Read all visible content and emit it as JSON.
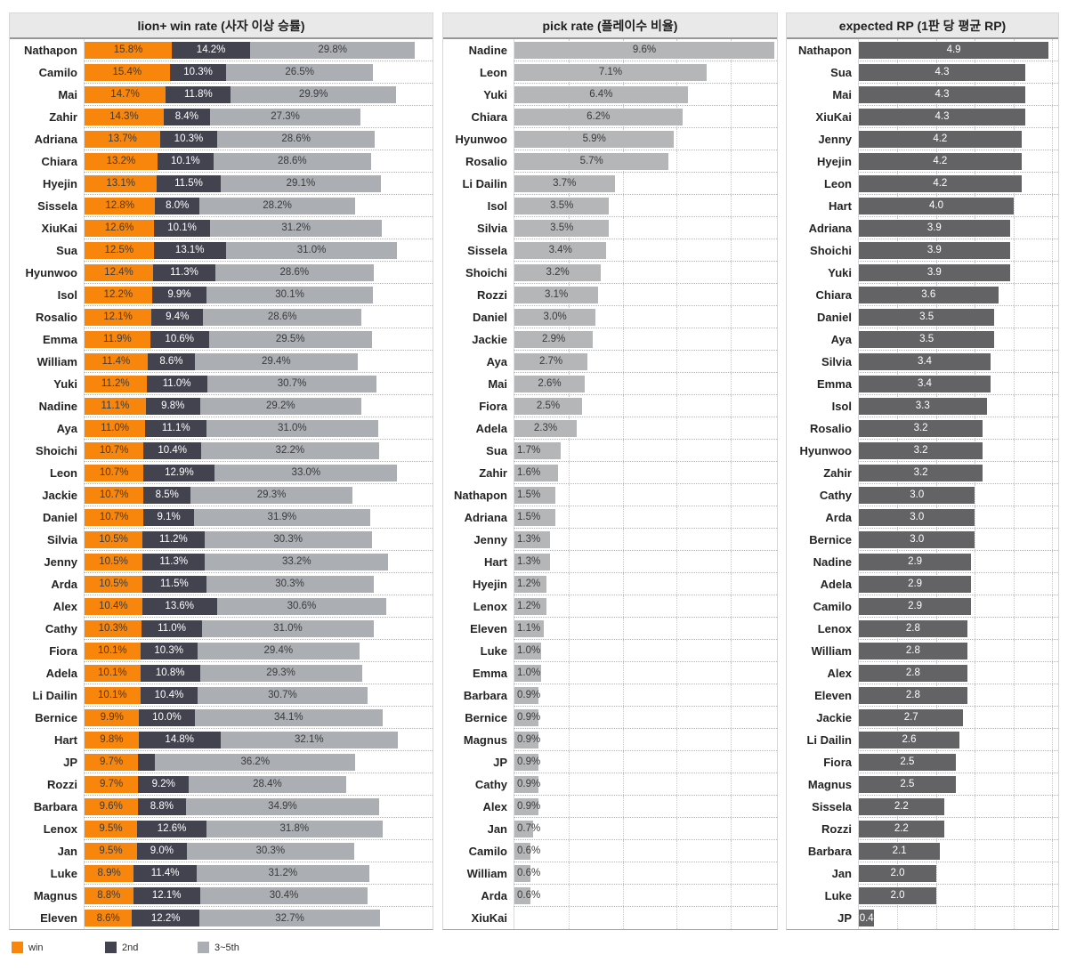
{
  "page": {
    "background": "#ffffff"
  },
  "legend": {
    "items": [
      {
        "label": "win",
        "color": "#F8860D"
      },
      {
        "label": "2nd",
        "color": "#42434F"
      },
      {
        "label": "3~5th",
        "color": "#ABAFB3"
      }
    ]
  },
  "chart_data": [
    {
      "type": "bar",
      "orientation": "horizontal",
      "stacked": true,
      "title": "lion+ win rate (사자 이상 승률)",
      "legend": [
        "win",
        "2nd",
        "3~5th"
      ],
      "colors": [
        "#F8860D",
        "#42434F",
        "#ABAFB3"
      ],
      "xlim": [
        0,
        63
      ],
      "value_format": "percent_1dp",
      "grid": "dotted-row-separators",
      "rows": [
        {
          "name": "Nathapon",
          "values": [
            15.8,
            14.2,
            29.8
          ]
        },
        {
          "name": "Camilo",
          "values": [
            15.4,
            10.3,
            26.5
          ]
        },
        {
          "name": "Mai",
          "values": [
            14.7,
            11.8,
            29.9
          ]
        },
        {
          "name": "Zahir",
          "values": [
            14.3,
            8.4,
            27.3
          ]
        },
        {
          "name": "Adriana",
          "values": [
            13.7,
            10.3,
            28.6
          ]
        },
        {
          "name": "Chiara",
          "values": [
            13.2,
            10.1,
            28.6
          ]
        },
        {
          "name": "Hyejin",
          "values": [
            13.1,
            11.5,
            29.1
          ]
        },
        {
          "name": "Sissela",
          "values": [
            12.8,
            8.0,
            28.2
          ]
        },
        {
          "name": "XiuKai",
          "values": [
            12.6,
            10.1,
            31.2
          ]
        },
        {
          "name": "Sua",
          "values": [
            12.5,
            13.1,
            31.0
          ]
        },
        {
          "name": "Hyunwoo",
          "values": [
            12.4,
            11.3,
            28.6
          ]
        },
        {
          "name": "Isol",
          "values": [
            12.2,
            9.9,
            30.1
          ]
        },
        {
          "name": "Rosalio",
          "values": [
            12.1,
            9.4,
            28.6
          ]
        },
        {
          "name": "Emma",
          "values": [
            11.9,
            10.6,
            29.5
          ]
        },
        {
          "name": "William",
          "values": [
            11.4,
            8.6,
            29.4
          ]
        },
        {
          "name": "Yuki",
          "values": [
            11.2,
            11.0,
            30.7
          ]
        },
        {
          "name": "Nadine",
          "values": [
            11.1,
            9.8,
            29.2
          ]
        },
        {
          "name": "Aya",
          "values": [
            11.0,
            11.1,
            31.0
          ]
        },
        {
          "name": "Shoichi",
          "values": [
            10.7,
            10.4,
            32.2
          ]
        },
        {
          "name": "Leon",
          "values": [
            10.7,
            12.9,
            33.0
          ]
        },
        {
          "name": "Jackie",
          "values": [
            10.7,
            8.5,
            29.3
          ]
        },
        {
          "name": "Daniel",
          "values": [
            10.7,
            9.1,
            31.9
          ]
        },
        {
          "name": "Silvia",
          "values": [
            10.5,
            11.2,
            30.3
          ]
        },
        {
          "name": "Jenny",
          "values": [
            10.5,
            11.3,
            33.2
          ]
        },
        {
          "name": "Arda",
          "values": [
            10.5,
            11.5,
            30.3
          ]
        },
        {
          "name": "Alex",
          "values": [
            10.4,
            13.6,
            30.6
          ]
        },
        {
          "name": "Cathy",
          "values": [
            10.3,
            11.0,
            31.0
          ]
        },
        {
          "name": "Fiora",
          "values": [
            10.1,
            10.3,
            29.4
          ]
        },
        {
          "name": "Adela",
          "values": [
            10.1,
            10.8,
            29.3
          ]
        },
        {
          "name": "Li Dailin",
          "values": [
            10.1,
            10.4,
            30.7
          ]
        },
        {
          "name": "Bernice",
          "values": [
            9.9,
            10.0,
            34.1
          ]
        },
        {
          "name": "Hart",
          "values": [
            9.8,
            14.8,
            32.1
          ]
        },
        {
          "name": "JP",
          "values": [
            9.7,
            3.1,
            36.2
          ],
          "hidden_labels": [
            1
          ]
        },
        {
          "name": "Rozzi",
          "values": [
            9.7,
            9.2,
            28.4
          ]
        },
        {
          "name": "Barbara",
          "values": [
            9.6,
            8.8,
            34.9
          ]
        },
        {
          "name": "Lenox",
          "values": [
            9.5,
            12.6,
            31.8
          ]
        },
        {
          "name": "Jan",
          "values": [
            9.5,
            9.0,
            30.3
          ]
        },
        {
          "name": "Luke",
          "values": [
            8.9,
            11.4,
            31.2
          ]
        },
        {
          "name": "Magnus",
          "values": [
            8.8,
            12.1,
            30.4
          ]
        },
        {
          "name": "Eleven",
          "values": [
            8.6,
            12.2,
            32.7
          ]
        }
      ]
    },
    {
      "type": "bar",
      "orientation": "horizontal",
      "title": "pick rate (플레이수 비율)",
      "color": "#B5B6B8",
      "xlim": [
        0,
        9.7
      ],
      "gridlines": [
        2,
        4,
        6,
        8
      ],
      "value_format": "percent_1dp",
      "rows": [
        {
          "name": "Nadine",
          "value": 9.6
        },
        {
          "name": "Leon",
          "value": 7.1
        },
        {
          "name": "Yuki",
          "value": 6.4
        },
        {
          "name": "Chiara",
          "value": 6.2
        },
        {
          "name": "Hyunwoo",
          "value": 5.9
        },
        {
          "name": "Rosalio",
          "value": 5.7
        },
        {
          "name": "Li Dailin",
          "value": 3.7
        },
        {
          "name": "Isol",
          "value": 3.5
        },
        {
          "name": "Silvia",
          "value": 3.5
        },
        {
          "name": "Sissela",
          "value": 3.4
        },
        {
          "name": "Shoichi",
          "value": 3.2
        },
        {
          "name": "Rozzi",
          "value": 3.1
        },
        {
          "name": "Daniel",
          "value": 3.0
        },
        {
          "name": "Jackie",
          "value": 2.9
        },
        {
          "name": "Aya",
          "value": 2.7
        },
        {
          "name": "Mai",
          "value": 2.6
        },
        {
          "name": "Fiora",
          "value": 2.5
        },
        {
          "name": "Adela",
          "value": 2.3
        },
        {
          "name": "Sua",
          "value": 1.7
        },
        {
          "name": "Zahir",
          "value": 1.6
        },
        {
          "name": "Nathapon",
          "value": 1.5
        },
        {
          "name": "Adriana",
          "value": 1.5
        },
        {
          "name": "Jenny",
          "value": 1.3
        },
        {
          "name": "Hart",
          "value": 1.3
        },
        {
          "name": "Hyejin",
          "value": 1.2
        },
        {
          "name": "Lenox",
          "value": 1.2
        },
        {
          "name": "Eleven",
          "value": 1.1
        },
        {
          "name": "Luke",
          "value": 1.0
        },
        {
          "name": "Emma",
          "value": 1.0
        },
        {
          "name": "Barbara",
          "value": 0.9
        },
        {
          "name": "Bernice",
          "value": 0.9
        },
        {
          "name": "Magnus",
          "value": 0.9
        },
        {
          "name": "JP",
          "value": 0.9
        },
        {
          "name": "Cathy",
          "value": 0.9
        },
        {
          "name": "Alex",
          "value": 0.9
        },
        {
          "name": "Jan",
          "value": 0.7
        },
        {
          "name": "Camilo",
          "value": 0.6
        },
        {
          "name": "William",
          "value": 0.6
        },
        {
          "name": "Arda",
          "value": 0.6
        },
        {
          "name": "XiuKai",
          "value": null
        }
      ]
    },
    {
      "type": "bar",
      "orientation": "horizontal",
      "title": "expected RP (1판 당 평균 RP)",
      "color": "#636365",
      "xlim": [
        0,
        5.15
      ],
      "gridlines": [
        1,
        2,
        3,
        4,
        5
      ],
      "value_format": "number_1dp",
      "rows": [
        {
          "name": "Nathapon",
          "value": 4.9
        },
        {
          "name": "Sua",
          "value": 4.3
        },
        {
          "name": "Mai",
          "value": 4.3
        },
        {
          "name": "XiuKai",
          "value": 4.3
        },
        {
          "name": "Jenny",
          "value": 4.2
        },
        {
          "name": "Hyejin",
          "value": 4.2
        },
        {
          "name": "Leon",
          "value": 4.2
        },
        {
          "name": "Hart",
          "value": 4.0
        },
        {
          "name": "Adriana",
          "value": 3.9
        },
        {
          "name": "Shoichi",
          "value": 3.9
        },
        {
          "name": "Yuki",
          "value": 3.9
        },
        {
          "name": "Chiara",
          "value": 3.6
        },
        {
          "name": "Daniel",
          "value": 3.5
        },
        {
          "name": "Aya",
          "value": 3.5
        },
        {
          "name": "Silvia",
          "value": 3.4
        },
        {
          "name": "Emma",
          "value": 3.4
        },
        {
          "name": "Isol",
          "value": 3.3
        },
        {
          "name": "Rosalio",
          "value": 3.2
        },
        {
          "name": "Hyunwoo",
          "value": 3.2
        },
        {
          "name": "Zahir",
          "value": 3.2
        },
        {
          "name": "Cathy",
          "value": 3.0
        },
        {
          "name": "Arda",
          "value": 3.0
        },
        {
          "name": "Bernice",
          "value": 3.0
        },
        {
          "name": "Nadine",
          "value": 2.9
        },
        {
          "name": "Adela",
          "value": 2.9
        },
        {
          "name": "Camilo",
          "value": 2.9
        },
        {
          "name": "Lenox",
          "value": 2.8
        },
        {
          "name": "William",
          "value": 2.8
        },
        {
          "name": "Alex",
          "value": 2.8
        },
        {
          "name": "Eleven",
          "value": 2.8
        },
        {
          "name": "Jackie",
          "value": 2.7
        },
        {
          "name": "Li Dailin",
          "value": 2.6
        },
        {
          "name": "Fiora",
          "value": 2.5
        },
        {
          "name": "Magnus",
          "value": 2.5
        },
        {
          "name": "Sissela",
          "value": 2.2
        },
        {
          "name": "Rozzi",
          "value": 2.2
        },
        {
          "name": "Barbara",
          "value": 2.1
        },
        {
          "name": "Jan",
          "value": 2.0
        },
        {
          "name": "Luke",
          "value": 2.0
        },
        {
          "name": "JP",
          "value": 0.4
        }
      ]
    }
  ]
}
